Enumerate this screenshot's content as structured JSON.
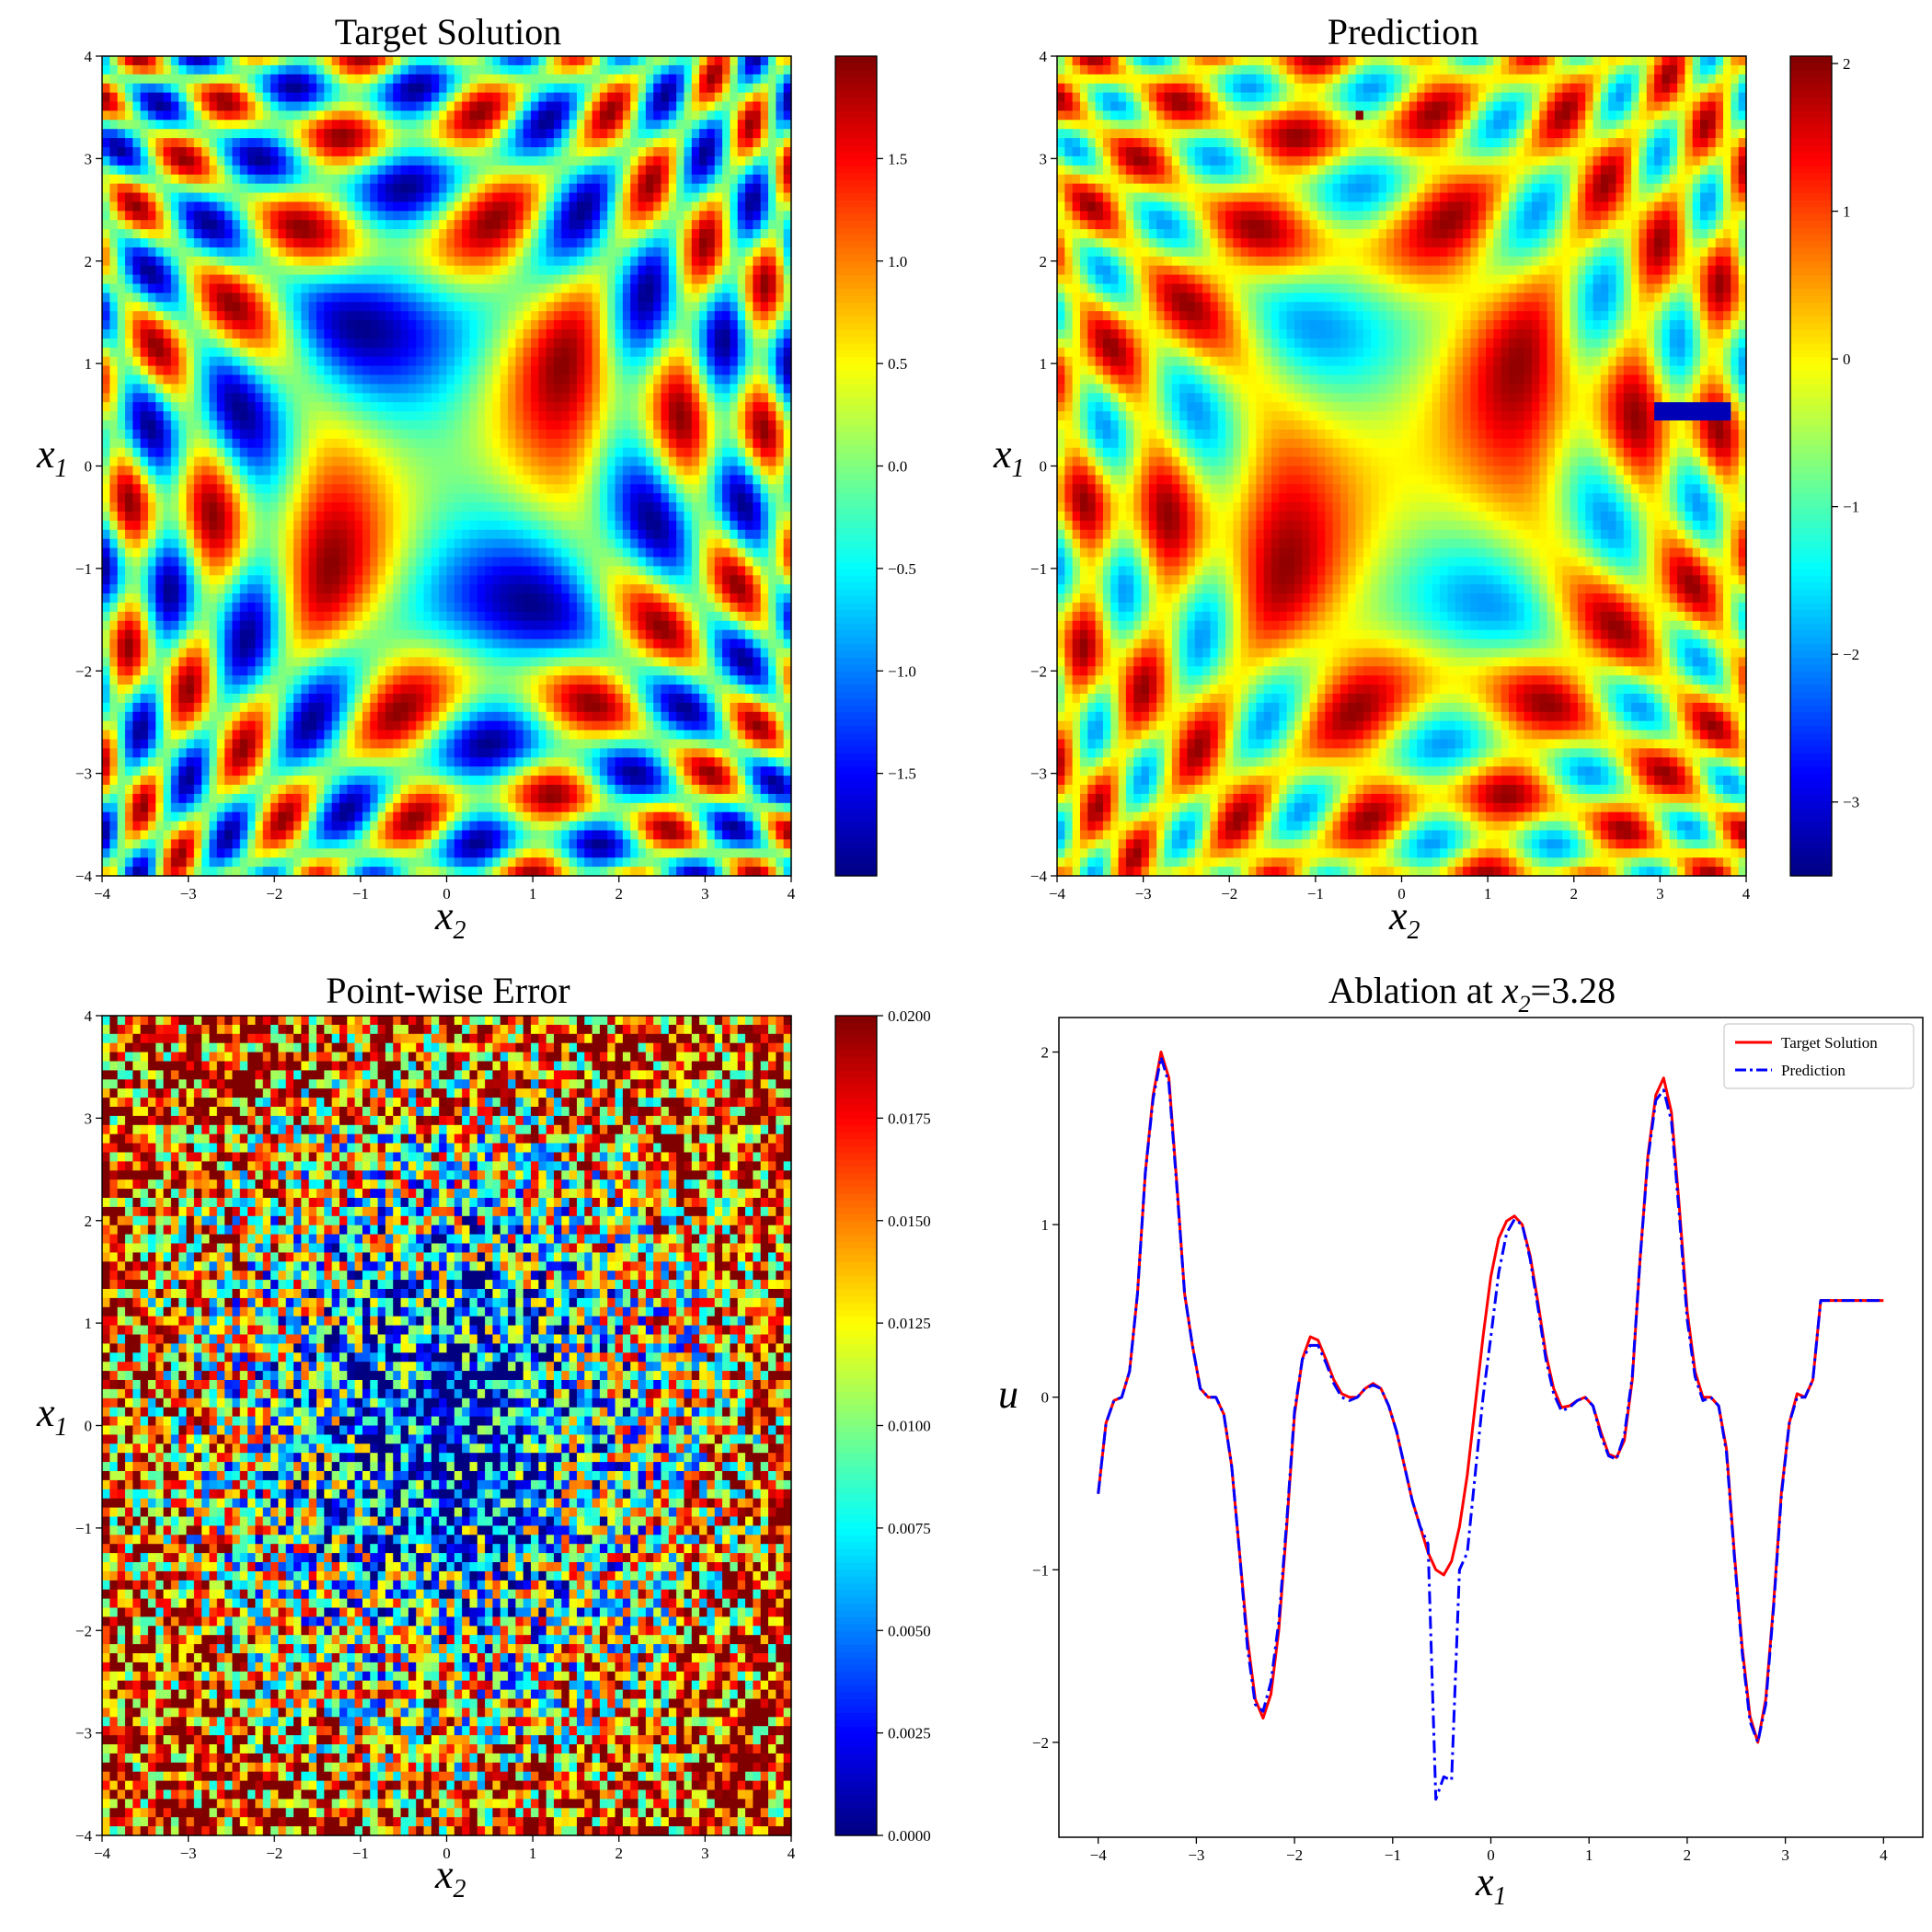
{
  "chart_data": [
    {
      "type": "heatmap",
      "title": "Target Solution",
      "xlabel": "x",
      "xlabel_sub": "2",
      "ylabel": "x",
      "ylabel_sub": "1",
      "xlim": [
        -4,
        4
      ],
      "ylim": [
        -4,
        4
      ],
      "xticks": [
        "−4",
        "−3",
        "−2",
        "−1",
        "0",
        "1",
        "2",
        "3",
        "4"
      ],
      "yticks": [
        "−4",
        "−3",
        "−2",
        "−1",
        "0",
        "1",
        "2",
        "3",
        "4"
      ],
      "colormap": "jet",
      "colorbar_range": [
        -2.0,
        2.0
      ],
      "colorbar_ticks": [
        "−1.5",
        "−1.0",
        "−0.5",
        "0.0",
        "0.5",
        "1.0",
        "1.5"
      ],
      "colorbar_tick_values": [
        -1.5,
        -1.0,
        -0.5,
        0.0,
        0.5,
        1.0,
        1.5
      ],
      "grid": false
    },
    {
      "type": "heatmap",
      "title": "Prediction",
      "xlabel": "x",
      "xlabel_sub": "2",
      "ylabel": "x",
      "ylabel_sub": "1",
      "xlim": [
        -4,
        4
      ],
      "ylim": [
        -4,
        4
      ],
      "xticks": [
        "−4",
        "−3",
        "−2",
        "−1",
        "0",
        "1",
        "2",
        "3",
        "4"
      ],
      "yticks": [
        "−4",
        "−3",
        "−2",
        "−1",
        "0",
        "1",
        "2",
        "3",
        "4"
      ],
      "colormap": "jet",
      "colorbar_range": [
        -3.5,
        2.05
      ],
      "colorbar_ticks": [
        "−3",
        "−2",
        "−1",
        "0",
        "1",
        "2"
      ],
      "colorbar_tick_values": [
        -3,
        -2,
        -1,
        0,
        1,
        2
      ],
      "grid": false
    },
    {
      "type": "heatmap",
      "title": "Point-wise Error",
      "xlabel": "x",
      "xlabel_sub": "2",
      "ylabel": "x",
      "ylabel_sub": "1",
      "xlim": [
        -4,
        4
      ],
      "ylim": [
        -4,
        4
      ],
      "xticks": [
        "−4",
        "−3",
        "−2",
        "−1",
        "0",
        "1",
        "2",
        "3",
        "4"
      ],
      "yticks": [
        "−4",
        "−3",
        "−2",
        "−1",
        "0",
        "1",
        "2",
        "3",
        "4"
      ],
      "colormap": "jet",
      "colorbar_range": [
        0.0,
        0.02
      ],
      "colorbar_ticks": [
        "0.0000",
        "0.0025",
        "0.0050",
        "0.0075",
        "0.0100",
        "0.0125",
        "0.0150",
        "0.0175",
        "0.0200"
      ],
      "colorbar_tick_values": [
        0,
        0.0025,
        0.005,
        0.0075,
        0.01,
        0.0125,
        0.015,
        0.0175,
        0.02
      ],
      "grid": false
    },
    {
      "type": "line",
      "title": "Ablation at ",
      "title_var": "x",
      "title_sub": "2",
      "title_value": "=3.28",
      "xlabel": "x",
      "xlabel_sub": "1",
      "ylabel": "u",
      "xlim": [
        -4.4,
        4.4
      ],
      "ylim": [
        -2.55,
        2.2
      ],
      "xticks": [
        "−4",
        "−3",
        "−2",
        "−1",
        "0",
        "1",
        "2",
        "3",
        "4"
      ],
      "xtick_values": [
        -4,
        -3,
        -2,
        -1,
        0,
        1,
        2,
        3,
        4
      ],
      "yticks": [
        "−2",
        "−1",
        "0",
        "1",
        "2"
      ],
      "ytick_values": [
        -2,
        -1,
        0,
        1,
        2
      ],
      "legend_position": "top-right",
      "grid": false,
      "x": [
        -4.0,
        -3.92,
        -3.84,
        -3.76,
        -3.68,
        -3.6,
        -3.52,
        -3.44,
        -3.36,
        -3.28,
        -3.2,
        -3.12,
        -3.04,
        -2.96,
        -2.88,
        -2.8,
        -2.72,
        -2.64,
        -2.56,
        -2.48,
        -2.4,
        -2.32,
        -2.24,
        -2.16,
        -2.08,
        -2.0,
        -1.92,
        -1.84,
        -1.76,
        -1.68,
        -1.6,
        -1.52,
        -1.44,
        -1.36,
        -1.28,
        -1.2,
        -1.12,
        -1.04,
        -0.96,
        -0.88,
        -0.8,
        -0.72,
        -0.64,
        -0.56,
        -0.48,
        -0.4,
        -0.32,
        -0.24,
        -0.16,
        -0.08,
        0.0,
        0.08,
        0.16,
        0.24,
        0.32,
        0.4,
        0.48,
        0.56,
        0.64,
        0.72,
        0.8,
        0.88,
        0.96,
        1.04,
        1.12,
        1.2,
        1.28,
        1.36,
        1.44,
        1.52,
        1.6,
        1.68,
        1.76,
        1.84,
        1.92,
        2.0,
        2.08,
        2.16,
        2.24,
        2.32,
        2.4,
        2.48,
        2.56,
        2.64,
        2.72,
        2.8,
        2.88,
        2.96,
        3.04,
        3.12,
        3.2,
        3.28,
        3.36,
        3.44,
        3.52,
        3.6,
        3.68,
        3.76,
        3.84,
        3.92,
        4.0
      ],
      "series": [
        {
          "name": "Target Solution",
          "color": "#ff0000",
          "style": "solid",
          "values": [
            -0.56,
            -0.15,
            -0.02,
            0.0,
            0.15,
            0.6,
            1.3,
            1.75,
            2.0,
            1.85,
            1.25,
            0.6,
            0.3,
            0.05,
            0.0,
            0.0,
            -0.1,
            -0.4,
            -0.9,
            -1.4,
            -1.75,
            -1.86,
            -1.72,
            -1.35,
            -0.75,
            -0.1,
            0.22,
            0.35,
            0.33,
            0.22,
            0.1,
            0.02,
            0.0,
            0.0,
            0.05,
            0.08,
            0.05,
            -0.05,
            -0.2,
            -0.4,
            -0.6,
            -0.75,
            -0.9,
            -1.0,
            -1.03,
            -0.95,
            -0.75,
            -0.45,
            -0.05,
            0.35,
            0.7,
            0.92,
            1.02,
            1.05,
            1.0,
            0.82,
            0.55,
            0.25,
            0.05,
            -0.06,
            -0.05,
            -0.02,
            0.0,
            -0.05,
            -0.2,
            -0.33,
            -0.35,
            -0.25,
            0.1,
            0.8,
            1.4,
            1.75,
            1.85,
            1.65,
            1.1,
            0.5,
            0.15,
            0.0,
            0.0,
            -0.05,
            -0.3,
            -0.9,
            -1.45,
            -1.85,
            -2.0,
            -1.75,
            -1.2,
            -0.55,
            -0.15,
            0.02,
            0.0,
            0.1,
            0.56,
            0.56,
            0.56,
            0.56,
            0.56,
            0.56,
            0.56,
            0.56,
            0.56
          ],
          "comment_end": "series ends at x=4"
        },
        {
          "name": "Prediction",
          "color": "#0000ff",
          "style": "dashdot",
          "values": [
            -0.56,
            -0.15,
            -0.02,
            0.0,
            0.15,
            0.6,
            1.3,
            1.73,
            1.97,
            1.82,
            1.23,
            0.6,
            0.3,
            0.05,
            0.0,
            0.0,
            -0.1,
            -0.4,
            -0.9,
            -1.45,
            -1.78,
            -1.82,
            -1.65,
            -1.3,
            -0.72,
            -0.08,
            0.22,
            0.3,
            0.3,
            0.2,
            0.08,
            0.0,
            -0.02,
            0.0,
            0.05,
            0.07,
            0.05,
            -0.05,
            -0.2,
            -0.4,
            -0.6,
            -0.75,
            -0.85,
            -2.33,
            -2.2,
            -2.22,
            -1.0,
            -0.9,
            -0.45,
            0.0,
            0.35,
            0.72,
            0.95,
            1.03,
            1.0,
            0.8,
            0.52,
            0.22,
            0.02,
            -0.08,
            -0.06,
            -0.02,
            0.0,
            -0.05,
            -0.22,
            -0.34,
            -0.36,
            -0.22,
            0.12,
            0.8,
            1.38,
            1.72,
            1.78,
            1.6,
            1.05,
            0.45,
            0.12,
            -0.02,
            0.0,
            -0.05,
            -0.32,
            -0.92,
            -1.48,
            -1.88,
            -2.0,
            -1.78,
            -1.22,
            -0.57,
            -0.15,
            0.0,
            0.0,
            0.1,
            0.56,
            0.56,
            0.56,
            0.56,
            0.56,
            0.56,
            0.56,
            0.56,
            0.56
          ]
        }
      ]
    }
  ]
}
